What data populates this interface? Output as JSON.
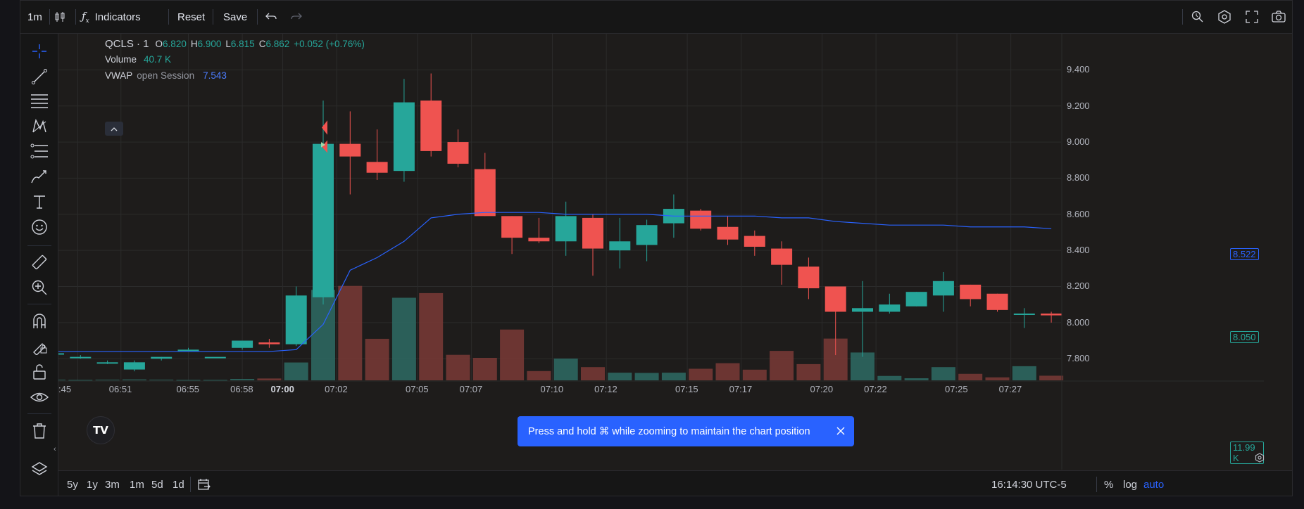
{
  "topbar": {
    "interval": "1m",
    "indicators_label": "Indicators",
    "reset_label": "Reset",
    "save_label": "Save"
  },
  "legend": {
    "symbol": "QCLS · 1",
    "o_label": "O",
    "o_value": "6.820",
    "h_label": "H",
    "h_value": "6.900",
    "l_label": "L",
    "l_value": "6.815",
    "c_label": "C",
    "c_value": "6.862",
    "change": "+0.052 (+0.76%)",
    "volume_label": "Volume",
    "volume_value": "40.7 K",
    "vwap_label": "VWAP",
    "vwap_params": "open Session",
    "vwap_value": "7.543"
  },
  "toast": {
    "message": "Press and hold ⌘ while zooming to maintain the chart position"
  },
  "price_axis": {
    "ticks": [
      "9.400",
      "9.200",
      "9.000",
      "8.800",
      "8.600",
      "8.400",
      "8.200",
      "8.000",
      "7.800"
    ],
    "vwap_badge": "8.522",
    "last_badge": "8.050",
    "volume_badge": "11.99 K"
  },
  "time_axis": {
    "ticks": [
      ":45",
      "06:51",
      "06:55",
      "06:58",
      "07:00",
      "07:02",
      "07:05",
      "07:07",
      "07:10",
      "07:12",
      "07:15",
      "07:17",
      "07:20",
      "07:22",
      "07:25",
      "07:27"
    ]
  },
  "bottombar": {
    "ranges": [
      "5y",
      "1y",
      "3m",
      "1m",
      "5d",
      "1d"
    ],
    "clock": "16:14:30 UTC-5",
    "percent_label": "%",
    "log_label": "log",
    "auto_label": "auto"
  },
  "colors": {
    "up": "#26a69a",
    "down": "#ef5350",
    "vwap": "#2962ff",
    "background": "#1e1c1b",
    "toast": "#2962ff"
  },
  "chart_data": {
    "type": "candlestick",
    "price_range": [
      7.68,
      9.6
    ],
    "candles": [
      {
        "o": 7.83,
        "h": 7.84,
        "l": 7.82,
        "c": 7.83,
        "v": 0.3
      },
      {
        "o": 7.81,
        "h": 7.82,
        "l": 7.8,
        "c": 7.81,
        "v": 0.2
      },
      {
        "o": 7.78,
        "h": 7.79,
        "l": 7.77,
        "c": 7.78,
        "v": 0.3
      },
      {
        "o": 7.74,
        "h": 7.79,
        "l": 7.73,
        "c": 7.78,
        "v": 0.4
      },
      {
        "o": 7.8,
        "h": 7.81,
        "l": 7.79,
        "c": 7.81,
        "v": 0.3
      },
      {
        "o": 7.85,
        "h": 7.86,
        "l": 7.85,
        "c": 7.85,
        "v": 0.2
      },
      {
        "o": 7.81,
        "h": 7.81,
        "l": 7.81,
        "c": 7.81,
        "v": 0.2
      },
      {
        "o": 7.86,
        "h": 7.9,
        "l": 7.85,
        "c": 7.9,
        "v": 0.6
      },
      {
        "o": 7.89,
        "h": 7.91,
        "l": 7.86,
        "c": 7.88,
        "v": 0.8
      },
      {
        "o": 7.88,
        "h": 8.2,
        "l": 7.87,
        "c": 8.15,
        "v": 7.7
      },
      {
        "o": 8.14,
        "h": 9.23,
        "l": 8.1,
        "c": 8.99,
        "v": 39.0
      },
      {
        "o": 8.99,
        "h": 9.17,
        "l": 8.71,
        "c": 8.92,
        "v": 40.7
      },
      {
        "o": 8.89,
        "h": 9.07,
        "l": 8.79,
        "c": 8.83,
        "v": 17.9
      },
      {
        "o": 8.84,
        "h": 9.35,
        "l": 8.78,
        "c": 9.22,
        "v": 35.6
      },
      {
        "o": 9.23,
        "h": 9.38,
        "l": 8.92,
        "c": 8.95,
        "v": 37.6
      },
      {
        "o": 9.0,
        "h": 9.07,
        "l": 8.86,
        "c": 8.88,
        "v": 11.0
      },
      {
        "o": 8.85,
        "h": 8.94,
        "l": 8.59,
        "c": 8.59,
        "v": 9.7
      },
      {
        "o": 8.59,
        "h": 8.59,
        "l": 8.38,
        "c": 8.47,
        "v": 21.9
      },
      {
        "o": 8.47,
        "h": 8.58,
        "l": 8.44,
        "c": 8.45,
        "v": 4.0
      },
      {
        "o": 8.45,
        "h": 8.67,
        "l": 8.37,
        "c": 8.59,
        "v": 9.4
      },
      {
        "o": 8.58,
        "h": 8.6,
        "l": 8.26,
        "c": 8.41,
        "v": 5.7
      },
      {
        "o": 8.4,
        "h": 8.58,
        "l": 8.3,
        "c": 8.45,
        "v": 3.3
      },
      {
        "o": 8.43,
        "h": 8.57,
        "l": 8.34,
        "c": 8.54,
        "v": 3.2
      },
      {
        "o": 8.55,
        "h": 8.71,
        "l": 8.47,
        "c": 8.63,
        "v": 3.3
      },
      {
        "o": 8.62,
        "h": 8.63,
        "l": 8.51,
        "c": 8.52,
        "v": 5.0
      },
      {
        "o": 8.53,
        "h": 8.59,
        "l": 8.43,
        "c": 8.46,
        "v": 7.4
      },
      {
        "o": 8.48,
        "h": 8.51,
        "l": 8.37,
        "c": 8.42,
        "v": 4.6
      },
      {
        "o": 8.41,
        "h": 8.45,
        "l": 8.21,
        "c": 8.32,
        "v": 12.7
      },
      {
        "o": 8.31,
        "h": 8.36,
        "l": 8.13,
        "c": 8.19,
        "v": 7.0
      },
      {
        "o": 8.2,
        "h": 8.2,
        "l": 7.82,
        "c": 8.06,
        "v": 18.0
      },
      {
        "o": 8.06,
        "h": 8.23,
        "l": 7.81,
        "c": 8.08,
        "v": 12.0
      },
      {
        "o": 8.06,
        "h": 8.16,
        "l": 8.05,
        "c": 8.1,
        "v": 1.9
      },
      {
        "o": 8.09,
        "h": 8.17,
        "l": 8.09,
        "c": 8.17,
        "v": 0.9
      },
      {
        "o": 8.15,
        "h": 8.28,
        "l": 8.06,
        "c": 8.23,
        "v": 5.7
      },
      {
        "o": 8.21,
        "h": 8.21,
        "l": 8.09,
        "c": 8.13,
        "v": 2.8
      },
      {
        "o": 8.16,
        "h": 8.16,
        "l": 8.06,
        "c": 8.07,
        "v": 1.3
      },
      {
        "o": 8.05,
        "h": 8.08,
        "l": 7.97,
        "c": 8.05,
        "v": 6.1
      },
      {
        "o": 8.05,
        "h": 8.06,
        "l": 8.0,
        "c": 8.04,
        "v": 2.0
      }
    ],
    "vwap": [
      7.84,
      7.84,
      7.84,
      7.84,
      7.84,
      7.84,
      7.84,
      7.84,
      7.84,
      7.85,
      7.99,
      8.29,
      8.36,
      8.45,
      8.58,
      8.6,
      8.61,
      8.61,
      8.61,
      8.6,
      8.6,
      8.6,
      8.6,
      8.59,
      8.59,
      8.59,
      8.59,
      8.58,
      8.58,
      8.56,
      8.55,
      8.54,
      8.54,
      8.54,
      8.53,
      8.53,
      8.53,
      8.52
    ]
  }
}
